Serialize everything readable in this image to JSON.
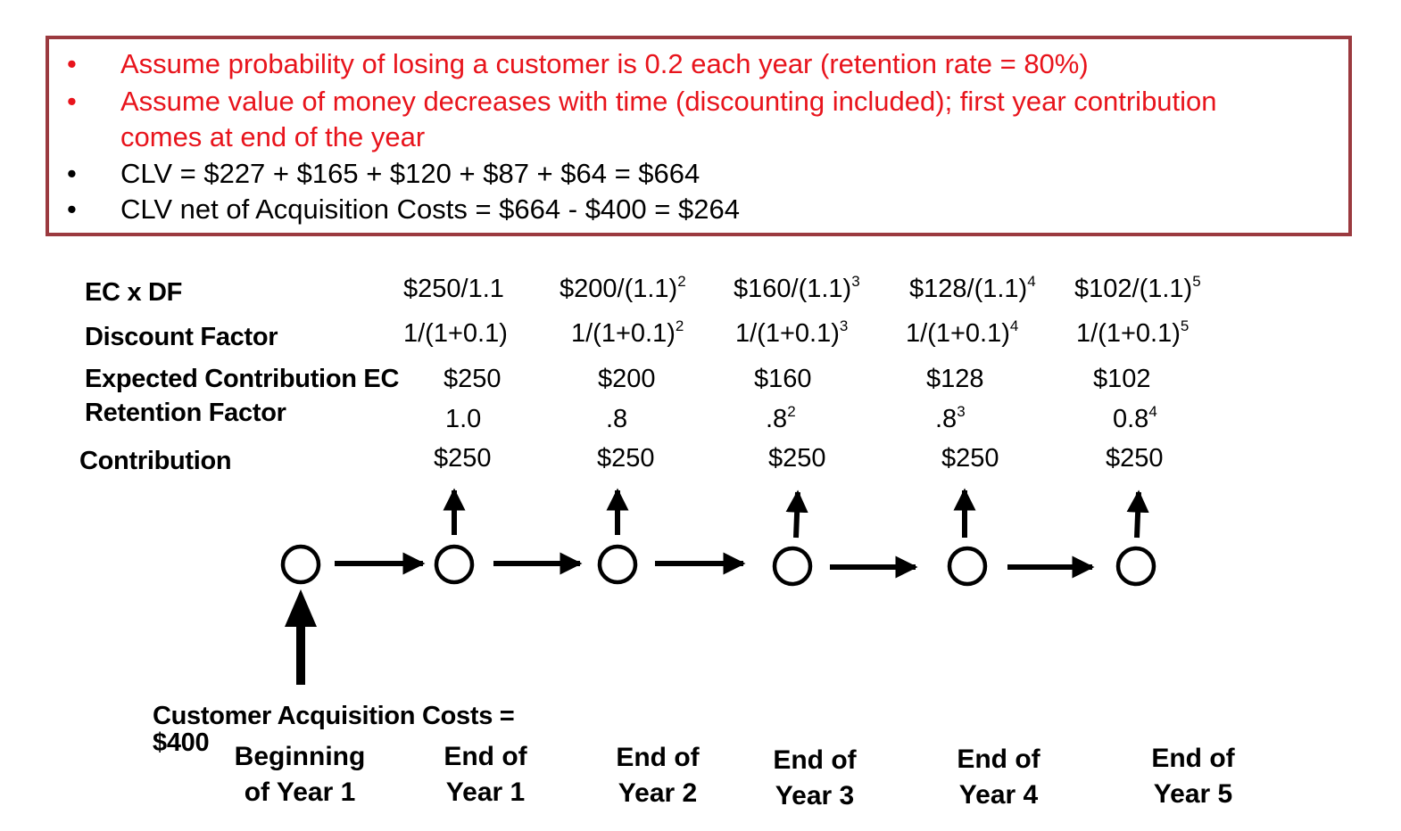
{
  "bullets": [
    {
      "marker": "•",
      "text": "Assume probability of losing a customer is 0.2 each year (retention rate = 80%)"
    },
    {
      "marker": "•",
      "text": "Assume value of money decreases with time (discounting included); first year contribution"
    },
    {
      "marker": "",
      "text": "comes at end of the year"
    },
    {
      "marker": "•",
      "text": "CLV = $227 + $165 + $120 + $87 + $64 = $664"
    },
    {
      "marker": "•",
      "text": "CLV net of Acquisition Costs = $664 - $400 = $264"
    }
  ],
  "row_labels": {
    "ec_df": "EC x DF",
    "discount_factor": "Discount Factor",
    "expected_contribution": "Expected Contribution EC",
    "retention_factor": "Retention Factor",
    "contribution": "Contribution"
  },
  "ec_df": [
    {
      "base": "$250/1.1",
      "exp": ""
    },
    {
      "base": "$200/(1.1)",
      "exp": "2"
    },
    {
      "base": "$160/(1.1)",
      "exp": "3"
    },
    {
      "base": "$128/(1.1)",
      "exp": "4"
    },
    {
      "base": "$102/(1.1)",
      "exp": "5"
    }
  ],
  "discount_factor": [
    {
      "base": "1/(1+0.1)",
      "exp": ""
    },
    {
      "base": "1/(1+0.1)",
      "exp": "2"
    },
    {
      "base": "1/(1+0.1)",
      "exp": "3"
    },
    {
      "base": "1/(1+0.1)",
      "exp": "4"
    },
    {
      "base": "1/(1+0.1)",
      "exp": "5"
    }
  ],
  "expected_contribution": [
    "$250",
    "$200",
    "$160",
    "$128",
    "$102"
  ],
  "retention_factor": [
    {
      "base": "1.0",
      "exp": ""
    },
    {
      "base": ".8",
      "exp": ""
    },
    {
      "base": ".8",
      "exp": "2"
    },
    {
      "base": ".8",
      "exp": "3"
    },
    {
      "base": "0.8",
      "exp": "4"
    }
  ],
  "contribution": [
    "$250",
    "$250",
    "$250",
    "$250",
    "$250"
  ],
  "acquisition": {
    "line1": "Customer Acquisition Costs =",
    "line2": "$400"
  },
  "timeline": [
    {
      "l1": "Beginning",
      "l2": "of Year 1"
    },
    {
      "l1": "End of",
      "l2": "Year 1"
    },
    {
      "l1": "End of",
      "l2": "Year 2"
    },
    {
      "l1": "End of",
      "l2": "Year 3"
    },
    {
      "l1": "End of",
      "l2": "Year 4"
    },
    {
      "l1": "End of",
      "l2": "Year 5"
    }
  ],
  "colors": {
    "box_border": "#9b3a3f",
    "highlight_text": "#e8141c"
  }
}
